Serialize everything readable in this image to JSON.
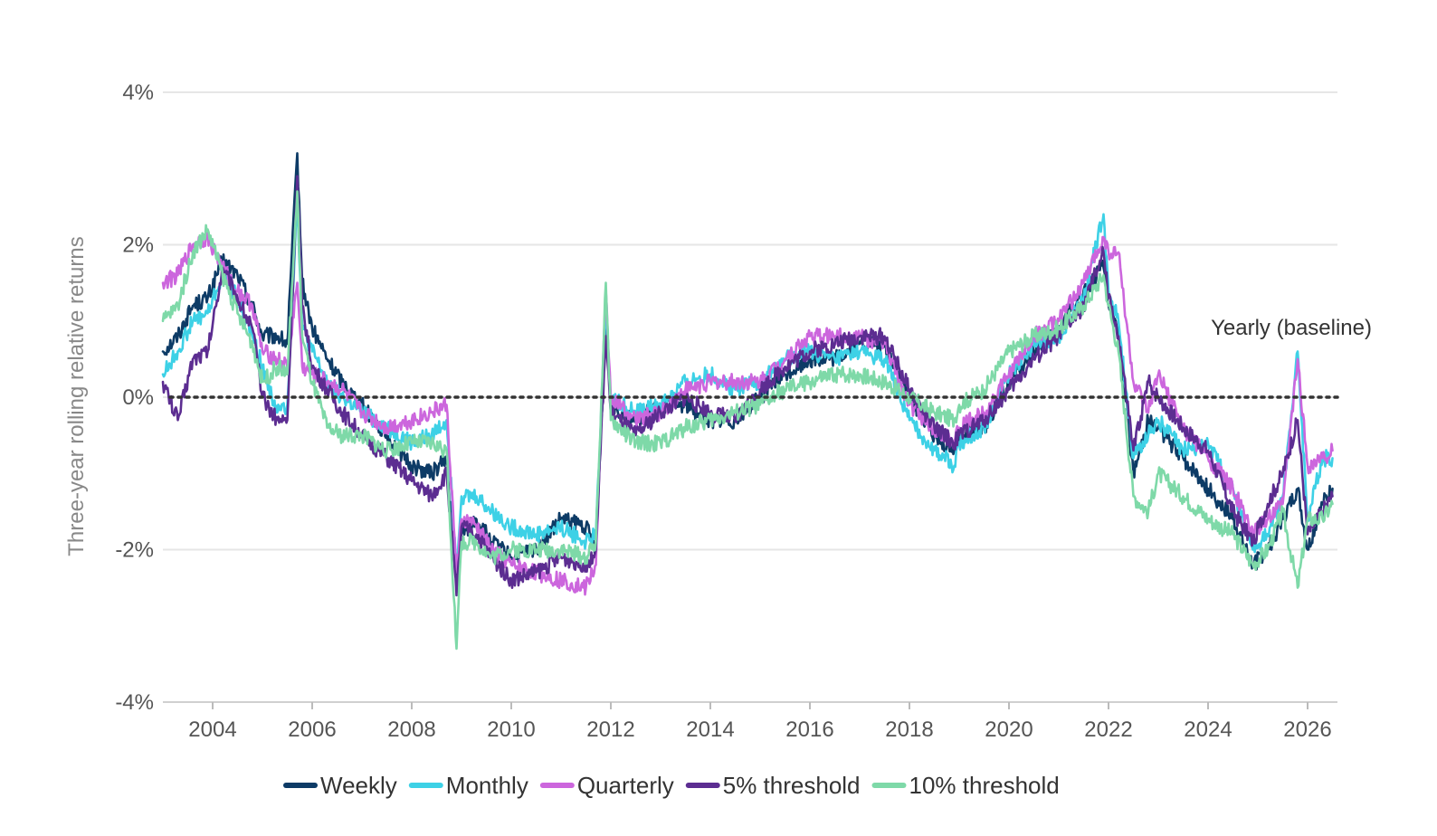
{
  "chart_data": {
    "type": "line",
    "title": "",
    "xlabel": "",
    "ylabel": "Three-year rolling relative returns",
    "x_range": [
      2003.0,
      2026.6
    ],
    "ylim": [
      -4,
      4
    ],
    "y_ticks": [
      {
        "value": -4,
        "label": "-4%"
      },
      {
        "value": -2,
        "label": "-2%"
      },
      {
        "value": 0,
        "label": "0%"
      },
      {
        "value": 2,
        "label": "2%"
      },
      {
        "value": 4,
        "label": "4%"
      }
    ],
    "x_ticks": [
      {
        "value": 2004,
        "label": "2004"
      },
      {
        "value": 2006,
        "label": "2006"
      },
      {
        "value": 2008,
        "label": "2008"
      },
      {
        "value": 2010,
        "label": "2010"
      },
      {
        "value": 2012,
        "label": "2012"
      },
      {
        "value": 2014,
        "label": "2014"
      },
      {
        "value": 2016,
        "label": "2016"
      },
      {
        "value": 2018,
        "label": "2018"
      },
      {
        "value": 2020,
        "label": "2020"
      },
      {
        "value": 2022,
        "label": "2022"
      },
      {
        "value": 2024,
        "label": "2024"
      },
      {
        "value": 2026,
        "label": "2026"
      }
    ],
    "grid": true,
    "legend_position": "bottom",
    "baseline": {
      "value": 0,
      "label": "Yearly (baseline)",
      "style": "dotted",
      "color": "#333333"
    },
    "series": [
      {
        "name": "Weekly",
        "color": "#0d3b66",
        "x": [
          2003.0,
          2003.3,
          2003.6,
          2003.9,
          2004.2,
          2004.5,
          2004.8,
          2005.0,
          2005.3,
          2005.5,
          2005.7,
          2005.8,
          2006.0,
          2006.3,
          2006.6,
          2007.0,
          2007.5,
          2008.0,
          2008.4,
          2008.7,
          2008.9,
          2009.0,
          2009.3,
          2009.6,
          2010.0,
          2010.5,
          2011.0,
          2011.5,
          2011.7,
          2011.9,
          2012.0,
          2012.5,
          2013.0,
          2013.5,
          2014.0,
          2014.5,
          2015.0,
          2015.5,
          2016.0,
          2016.5,
          2017.0,
          2017.5,
          2018.0,
          2018.5,
          2018.9,
          2019.0,
          2019.5,
          2020.0,
          2020.5,
          2021.0,
          2021.5,
          2021.9,
          2022.0,
          2022.2,
          2022.5,
          2022.8,
          2023.0,
          2023.5,
          2024.0,
          2024.5,
          2024.9,
          2025.2,
          2025.5,
          2025.8,
          2026.0,
          2026.3,
          2026.5
        ],
        "y": [
          0.6,
          0.8,
          1.2,
          1.3,
          1.8,
          1.6,
          1.2,
          0.8,
          0.8,
          0.7,
          3.2,
          1.5,
          0.9,
          0.5,
          0.2,
          -0.1,
          -0.5,
          -0.9,
          -1.0,
          -0.8,
          -2.5,
          -1.8,
          -1.6,
          -1.9,
          -2.1,
          -2.0,
          -1.6,
          -1.7,
          -2.0,
          1.0,
          -0.1,
          -0.3,
          -0.1,
          -0.1,
          -0.3,
          -0.3,
          0.0,
          0.3,
          0.5,
          0.5,
          0.7,
          0.7,
          0.0,
          -0.5,
          -0.7,
          -0.5,
          -0.4,
          0.2,
          0.6,
          0.9,
          1.4,
          1.7,
          1.2,
          0.9,
          -1.0,
          -0.3,
          -0.4,
          -0.8,
          -1.2,
          -1.6,
          -2.2,
          -2.0,
          -1.6,
          -1.2,
          -2.0,
          -1.4,
          -1.2
        ]
      },
      {
        "name": "Monthly",
        "color": "#3dd1e6",
        "x": [
          2003.0,
          2003.3,
          2003.6,
          2003.9,
          2004.2,
          2004.5,
          2004.8,
          2005.0,
          2005.3,
          2005.5,
          2005.7,
          2005.8,
          2006.0,
          2006.3,
          2006.6,
          2007.0,
          2007.5,
          2008.0,
          2008.4,
          2008.7,
          2008.9,
          2009.0,
          2009.3,
          2009.6,
          2010.0,
          2010.5,
          2011.0,
          2011.5,
          2011.7,
          2011.9,
          2012.0,
          2012.5,
          2013.0,
          2013.5,
          2014.0,
          2014.5,
          2015.0,
          2015.5,
          2016.0,
          2016.5,
          2017.0,
          2017.5,
          2018.0,
          2018.5,
          2018.9,
          2019.0,
          2019.5,
          2020.0,
          2020.5,
          2021.0,
          2021.5,
          2021.9,
          2022.0,
          2022.2,
          2022.5,
          2022.8,
          2023.0,
          2023.5,
          2024.0,
          2024.5,
          2024.9,
          2025.2,
          2025.5,
          2025.8,
          2026.0,
          2026.3,
          2026.5
        ],
        "y": [
          0.3,
          0.6,
          1.0,
          1.1,
          1.6,
          1.3,
          0.8,
          0.4,
          -0.2,
          -0.1,
          2.6,
          0.9,
          0.6,
          0.2,
          0.0,
          -0.2,
          -0.4,
          -0.6,
          -0.5,
          -0.3,
          -2.2,
          -1.3,
          -1.3,
          -1.5,
          -1.7,
          -1.8,
          -1.7,
          -1.9,
          -1.8,
          1.2,
          0.0,
          -0.2,
          -0.1,
          0.2,
          0.3,
          0.1,
          0.2,
          0.5,
          0.6,
          0.5,
          0.6,
          0.5,
          -0.3,
          -0.7,
          -0.9,
          -0.6,
          -0.4,
          0.3,
          0.7,
          0.8,
          1.3,
          2.4,
          1.4,
          1.0,
          -0.8,
          -0.5,
          -0.3,
          -0.7,
          -0.6,
          -1.2,
          -2.0,
          -1.8,
          -1.3,
          0.6,
          -1.6,
          -0.8,
          -0.8
        ]
      },
      {
        "name": "Quarterly",
        "color": "#cc66dd",
        "x": [
          2003.0,
          2003.3,
          2003.6,
          2003.9,
          2004.2,
          2004.5,
          2004.8,
          2005.0,
          2005.3,
          2005.5,
          2005.7,
          2005.8,
          2006.0,
          2006.3,
          2006.6,
          2007.0,
          2007.5,
          2008.0,
          2008.4,
          2008.7,
          2008.9,
          2009.0,
          2009.3,
          2009.6,
          2010.0,
          2010.5,
          2011.0,
          2011.5,
          2011.7,
          2011.9,
          2012.0,
          2012.5,
          2013.0,
          2013.5,
          2014.0,
          2014.5,
          2015.0,
          2015.5,
          2016.0,
          2016.5,
          2017.0,
          2017.5,
          2018.0,
          2018.5,
          2018.9,
          2019.0,
          2019.5,
          2020.0,
          2020.5,
          2021.0,
          2021.5,
          2021.9,
          2022.0,
          2022.2,
          2022.5,
          2022.8,
          2023.0,
          2023.5,
          2024.0,
          2024.5,
          2024.9,
          2025.2,
          2025.5,
          2025.8,
          2026.0,
          2026.3,
          2026.5
        ],
        "y": [
          1.5,
          1.6,
          2.0,
          2.1,
          1.7,
          1.4,
          1.2,
          0.6,
          0.5,
          0.4,
          1.5,
          0.4,
          0.3,
          0.2,
          0.1,
          -0.2,
          -0.4,
          -0.3,
          -0.2,
          -0.1,
          -2.3,
          -1.6,
          -1.7,
          -2.0,
          -2.2,
          -2.3,
          -2.4,
          -2.5,
          -2.2,
          1.4,
          0.0,
          -0.3,
          -0.2,
          0.1,
          0.2,
          0.2,
          0.2,
          0.5,
          0.8,
          0.8,
          0.8,
          0.7,
          -0.1,
          -0.4,
          -0.6,
          -0.4,
          -0.2,
          0.3,
          0.8,
          1.0,
          1.5,
          2.1,
          1.9,
          1.9,
          0.2,
          -0.2,
          0.3,
          -0.4,
          -0.8,
          -1.2,
          -1.8,
          -1.6,
          -1.4,
          0.5,
          -0.9,
          -0.8,
          -0.7
        ]
      },
      {
        "name": "5% threshold",
        "color": "#5c2d91",
        "x": [
          2003.0,
          2003.3,
          2003.6,
          2003.9,
          2004.2,
          2004.5,
          2004.8,
          2005.0,
          2005.3,
          2005.5,
          2005.7,
          2005.8,
          2006.0,
          2006.3,
          2006.6,
          2007.0,
          2007.5,
          2008.0,
          2008.4,
          2008.7,
          2008.9,
          2009.0,
          2009.3,
          2009.6,
          2010.0,
          2010.5,
          2011.0,
          2011.5,
          2011.7,
          2011.9,
          2012.0,
          2012.5,
          2013.0,
          2013.5,
          2014.0,
          2014.5,
          2015.0,
          2015.5,
          2016.0,
          2016.5,
          2017.0,
          2017.5,
          2018.0,
          2018.5,
          2018.9,
          2019.0,
          2019.5,
          2020.0,
          2020.5,
          2021.0,
          2021.5,
          2021.9,
          2022.0,
          2022.2,
          2022.5,
          2022.8,
          2023.0,
          2023.5,
          2024.0,
          2024.5,
          2024.9,
          2025.2,
          2025.5,
          2025.8,
          2026.0,
          2026.3,
          2026.5
        ],
        "y": [
          0.2,
          -0.3,
          0.5,
          0.6,
          1.7,
          1.3,
          0.9,
          0.0,
          -0.3,
          -0.3,
          2.9,
          1.2,
          0.4,
          0.1,
          -0.2,
          -0.5,
          -0.8,
          -1.1,
          -1.3,
          -1.0,
          -2.6,
          -1.7,
          -1.8,
          -2.1,
          -2.4,
          -2.3,
          -2.1,
          -2.2,
          -2.0,
          0.8,
          -0.2,
          -0.5,
          -0.2,
          0.0,
          -0.2,
          -0.3,
          0.1,
          0.4,
          0.6,
          0.7,
          0.8,
          0.8,
          0.1,
          -0.4,
          -0.6,
          -0.5,
          -0.3,
          0.1,
          0.5,
          0.8,
          1.2,
          1.9,
          1.3,
          0.8,
          -0.7,
          0.2,
          0.0,
          -0.4,
          -0.7,
          -1.5,
          -1.9,
          -1.4,
          -1.0,
          -0.3,
          -1.8,
          -1.5,
          -1.3
        ]
      },
      {
        "name": "10% threshold",
        "color": "#7ed9a8",
        "x": [
          2003.0,
          2003.3,
          2003.6,
          2003.9,
          2004.2,
          2004.5,
          2004.8,
          2005.0,
          2005.3,
          2005.5,
          2005.7,
          2005.8,
          2006.0,
          2006.3,
          2006.6,
          2007.0,
          2007.5,
          2008.0,
          2008.4,
          2008.7,
          2008.9,
          2009.0,
          2009.3,
          2009.6,
          2010.0,
          2010.5,
          2011.0,
          2011.5,
          2011.7,
          2011.9,
          2012.0,
          2012.5,
          2013.0,
          2013.5,
          2014.0,
          2014.5,
          2015.0,
          2015.5,
          2016.0,
          2016.5,
          2017.0,
          2017.5,
          2018.0,
          2018.5,
          2018.9,
          2019.0,
          2019.5,
          2020.0,
          2020.5,
          2021.0,
          2021.5,
          2021.9,
          2022.0,
          2022.2,
          2022.5,
          2022.8,
          2023.0,
          2023.5,
          2024.0,
          2024.5,
          2024.9,
          2025.2,
          2025.5,
          2025.8,
          2026.0,
          2026.3,
          2026.5
        ],
        "y": [
          1.0,
          1.2,
          1.9,
          2.2,
          1.6,
          1.1,
          0.7,
          0.2,
          0.4,
          0.3,
          2.7,
          0.8,
          0.2,
          -0.4,
          -0.5,
          -0.5,
          -0.7,
          -0.6,
          -0.6,
          -0.7,
          -3.3,
          -1.9,
          -1.9,
          -2.1,
          -2.0,
          -2.0,
          -2.0,
          -2.1,
          -1.9,
          1.5,
          -0.3,
          -0.6,
          -0.6,
          -0.4,
          -0.3,
          -0.2,
          -0.1,
          0.1,
          0.2,
          0.3,
          0.3,
          0.2,
          0.0,
          -0.2,
          -0.3,
          -0.1,
          0.1,
          0.6,
          0.8,
          0.9,
          1.2,
          1.6,
          1.2,
          0.6,
          -1.3,
          -1.5,
          -1.0,
          -1.3,
          -1.6,
          -1.8,
          -2.2,
          -2.0,
          -1.5,
          -2.5,
          -1.6,
          -1.6,
          -1.4
        ]
      }
    ]
  }
}
